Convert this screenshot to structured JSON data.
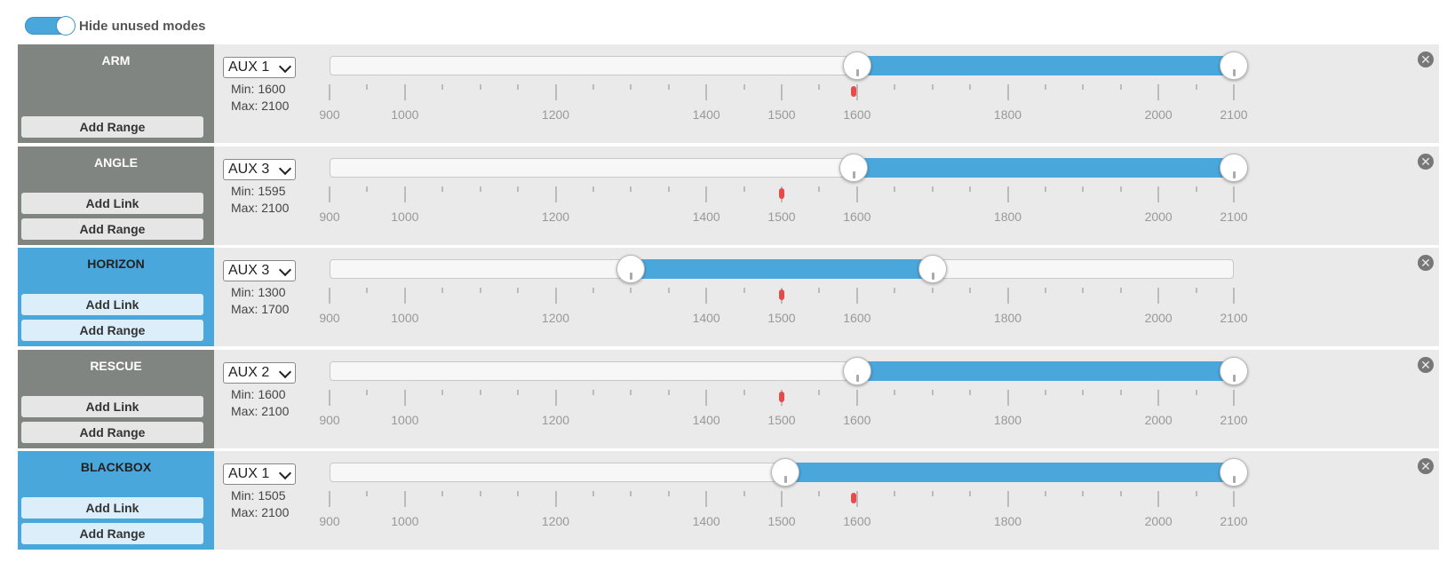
{
  "header": {
    "toggle_label": "Hide unused modes",
    "toggle_on": true
  },
  "scale": {
    "min": 900,
    "max": 2100,
    "labels": [
      900,
      1000,
      1200,
      1400,
      1500,
      1600,
      1800,
      2000,
      2100
    ],
    "major_ticks": [
      900,
      1000,
      1200,
      1400,
      1500,
      1600,
      1800,
      2000,
      2100
    ],
    "minor_ticks": [
      950,
      1050,
      1100,
      1150,
      1250,
      1300,
      1350,
      1450,
      1550,
      1650,
      1700,
      1750,
      1850,
      1900,
      1950,
      2050
    ]
  },
  "modes": [
    {
      "name": "ARM",
      "active": false,
      "has_link": false,
      "aux": "AUX 1",
      "min_label": "Min: 1600",
      "max_label": "Max: 2100",
      "min": 1600,
      "max": 2100,
      "current": 1595,
      "link_label": "",
      "range_label": "Add Range"
    },
    {
      "name": "ANGLE",
      "active": false,
      "has_link": true,
      "aux": "AUX 3",
      "min_label": "Min: 1595",
      "max_label": "Max: 2100",
      "min": 1595,
      "max": 2100,
      "current": 1500,
      "link_label": "Add Link",
      "range_label": "Add Range"
    },
    {
      "name": "HORIZON",
      "active": true,
      "has_link": true,
      "aux": "AUX 3",
      "min_label": "Min: 1300",
      "max_label": "Max: 1700",
      "min": 1300,
      "max": 1700,
      "current": 1500,
      "link_label": "Add Link",
      "range_label": "Add Range"
    },
    {
      "name": "RESCUE",
      "active": false,
      "has_link": true,
      "aux": "AUX 2",
      "min_label": "Min: 1600",
      "max_label": "Max: 2100",
      "min": 1600,
      "max": 2100,
      "current": 1500,
      "link_label": "Add Link",
      "range_label": "Add Range"
    },
    {
      "name": "BLACKBOX",
      "active": true,
      "has_link": true,
      "aux": "AUX 1",
      "min_label": "Min: 1505",
      "max_label": "Max: 2100",
      "min": 1505,
      "max": 2100,
      "current": 1595,
      "link_label": "Add Link",
      "range_label": "Add Range"
    }
  ],
  "colors": {
    "accent": "#4aa7dc",
    "inactive": "#818582",
    "marker": "#e84a4a",
    "row_bg": "#eaeaea"
  }
}
